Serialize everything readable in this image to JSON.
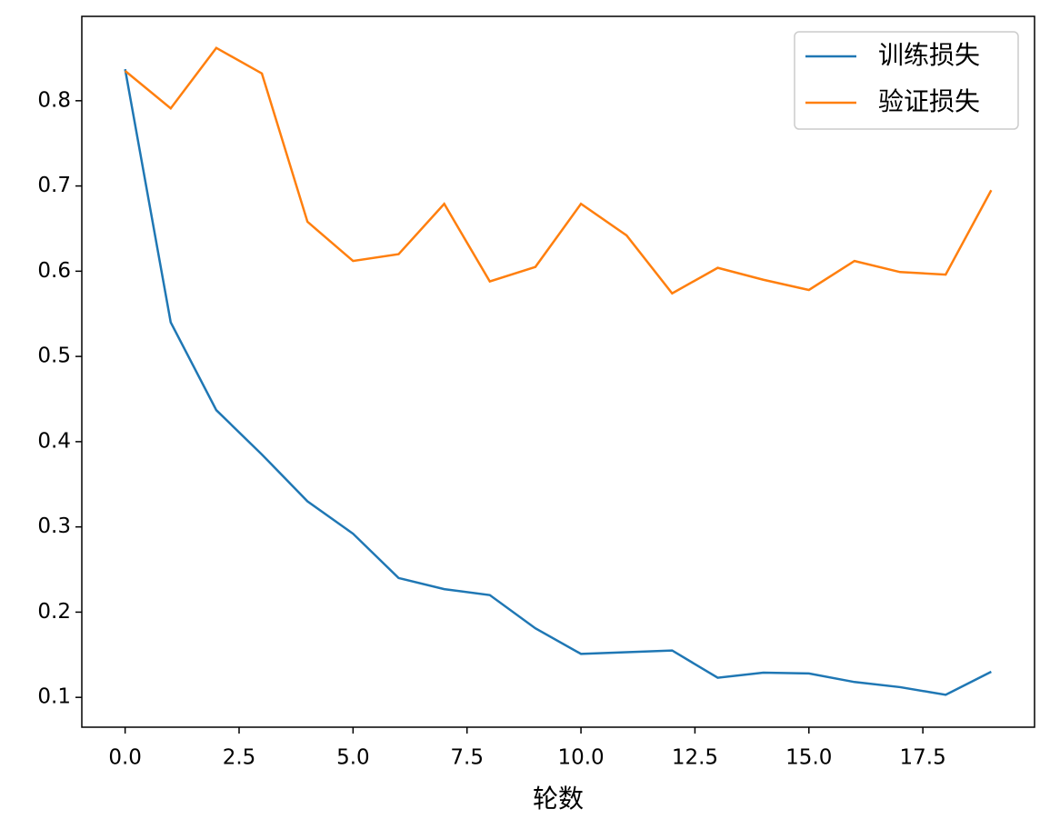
{
  "chart_data": {
    "type": "line",
    "x_label": "轮数",
    "x": [
      0,
      1,
      2,
      3,
      4,
      5,
      6,
      7,
      8,
      9,
      10,
      11,
      12,
      13,
      14,
      15,
      16,
      17,
      18,
      19
    ],
    "series": [
      {
        "name": "训练损失",
        "color": "#1f77b4",
        "values": [
          0.837,
          0.54,
          0.437,
          0.385,
          0.33,
          0.292,
          0.24,
          0.227,
          0.22,
          0.181,
          0.151,
          0.153,
          0.155,
          0.123,
          0.129,
          0.128,
          0.118,
          0.112,
          0.103,
          0.13
        ]
      },
      {
        "name": "验证损失",
        "color": "#ff7f0e",
        "values": [
          0.835,
          0.791,
          0.862,
          0.832,
          0.658,
          0.612,
          0.62,
          0.679,
          0.588,
          0.605,
          0.679,
          0.642,
          0.574,
          0.604,
          0.59,
          0.578,
          0.612,
          0.599,
          0.596,
          0.695
        ]
      }
    ],
    "xlim": [
      -0.95,
      19.95
    ],
    "ylim": [
      0.065,
      0.899
    ],
    "xticks": [
      {
        "value": 0,
        "label": "0.0"
      },
      2.5,
      {
        "value": 5,
        "label": "5.0"
      },
      7.5,
      {
        "value": 10,
        "label": "10.0"
      },
      12.5,
      {
        "value": 15,
        "label": "15.0"
      },
      17.5
    ],
    "yticks": [
      0.1,
      0.2,
      0.3,
      0.4,
      0.5,
      0.6,
      0.7,
      0.8
    ],
    "grid": false,
    "legend": "upper right"
  }
}
